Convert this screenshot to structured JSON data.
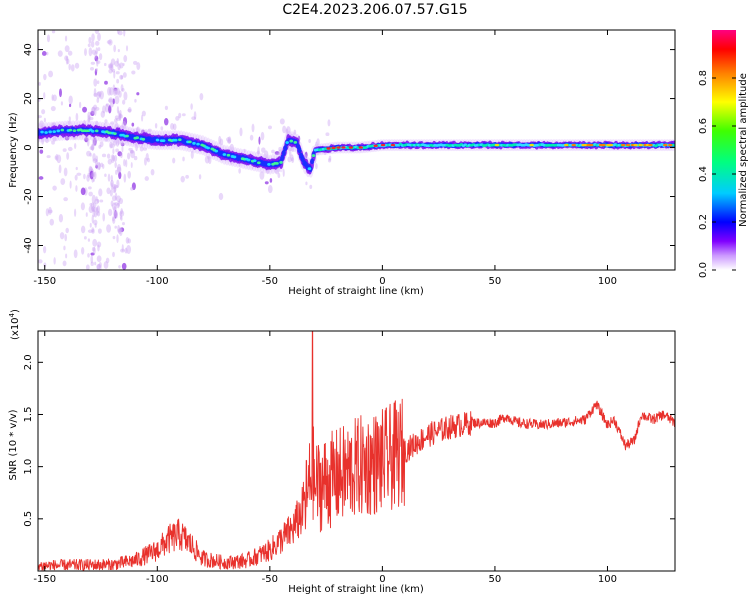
{
  "title": "C2E4.2023.206.07.57.G15",
  "chart_data": [
    {
      "type": "heatmap",
      "xlabel": "Height of straight line (km)",
      "ylabel": "Frequency (Hz)",
      "xlim": [
        -153,
        130
      ],
      "ylim": [
        -50,
        48
      ],
      "x_ticks": [
        "-150",
        "-100",
        "-50",
        "0",
        "50",
        "100"
      ],
      "y_ticks": [
        "40",
        "20",
        "0",
        "-20",
        "-40"
      ],
      "colorbar": {
        "label": "Normalized spectral amplitude",
        "range": [
          0,
          1
        ],
        "ticks": [
          "0.0",
          "0.2",
          "0.4",
          "0.6",
          "0.8"
        ],
        "colormap": [
          "#ffffff",
          "#cc99ff",
          "#8000ff",
          "#0000ff",
          "#00ccff",
          "#00ff80",
          "#40ff00",
          "#ffff00",
          "#ff8000",
          "#ff0000",
          "#ff0080"
        ]
      },
      "ridge": {
        "description_points_x": [
          -153,
          -140,
          -130,
          -120,
          -110,
          -100,
          -90,
          -80,
          -70,
          -60,
          -50,
          -45,
          -42,
          -38,
          -35,
          -32,
          -30,
          -20,
          -10,
          0,
          10,
          50,
          100,
          130
        ],
        "frequency_hz": [
          6,
          7,
          7,
          6,
          4,
          3,
          3,
          1,
          -3,
          -5,
          -7,
          -6,
          3,
          2,
          -6,
          -9,
          -1,
          0,
          0,
          1,
          1,
          1,
          1,
          1
        ]
      }
    },
    {
      "type": "line",
      "xlabel": "Height of straight line (km)",
      "ylabel": "SNR (10 * v/v)",
      "y_multiplier": "(x10",
      "y_multiplier_exp": "4",
      "xlim": [
        -153,
        130
      ],
      "ylim": [
        0,
        2.3
      ],
      "x_ticks": [
        "-150",
        "-100",
        "-50",
        "0",
        "50",
        "100"
      ],
      "y_ticks": [
        "0.5",
        "1.0",
        "1.5",
        "2.0"
      ],
      "series": [
        {
          "color": "#e8312c",
          "envelope_x": [
            -153,
            -120,
            -110,
            -100,
            -95,
            -90,
            -85,
            -80,
            -70,
            -60,
            -50,
            -40,
            -36,
            -33,
            -31,
            -30,
            -25,
            -20,
            -10,
            0,
            10,
            20,
            30,
            40,
            50,
            55,
            60,
            70,
            80,
            90,
            95,
            100,
            103,
            108,
            112,
            115,
            120,
            125,
            130
          ],
          "envelope_y": [
            0.05,
            0.06,
            0.1,
            0.2,
            0.3,
            0.35,
            0.25,
            0.12,
            0.08,
            0.1,
            0.2,
            0.4,
            0.55,
            0.75,
            1.0,
            0.8,
            0.85,
            0.9,
            1.0,
            1.05,
            1.15,
            1.3,
            1.38,
            1.42,
            1.42,
            1.48,
            1.42,
            1.4,
            1.42,
            1.45,
            1.6,
            1.4,
            1.45,
            1.2,
            1.25,
            1.5,
            1.45,
            1.5,
            1.42
          ],
          "spike": {
            "x": -31,
            "y": 2.3
          }
        }
      ]
    }
  ]
}
